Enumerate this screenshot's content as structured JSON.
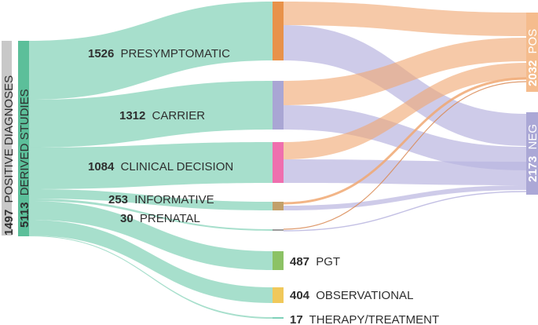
{
  "diagram": {
    "type": "sankey",
    "left_labels": {
      "positive_diagnoses": {
        "count": "1497",
        "label": "POSITIVE DIAGNOSES"
      },
      "derived_studies": {
        "count": "5113",
        "label": "DERIVED STUDIES"
      }
    },
    "categories": [
      {
        "id": "presymptomatic",
        "count": "1526",
        "label": "PRESYMPTOMATIC",
        "color": "#e8924a"
      },
      {
        "id": "carrier",
        "count": "1312",
        "label": "CARRIER",
        "color": "#a9a6d4"
      },
      {
        "id": "clinical-decision",
        "count": "1084",
        "label": "CLINICAL  DECISION",
        "color": "#ef6fae"
      },
      {
        "id": "informative",
        "count": "253",
        "label": "INFORMATIVE",
        "color": "#c2a06a"
      },
      {
        "id": "prenatal",
        "count": "30",
        "label": "PRENATAL",
        "color": "#9a9a9a"
      },
      {
        "id": "pgt",
        "count": "487",
        "label": "PGT",
        "color": "#8cc265"
      },
      {
        "id": "observational",
        "count": "404",
        "label": "OBSERVATIONAL",
        "color": "#f0c85a"
      },
      {
        "id": "therapy-treatment",
        "count": "17",
        "label": "THERAPY/TREATMENT",
        "color": "#7fd1b9"
      }
    ],
    "outcomes": [
      {
        "id": "pos",
        "count": "2032",
        "label": "POS",
        "color": "#f5bc8d"
      },
      {
        "id": "neg",
        "count": "2173",
        "label": "NEG",
        "color": "#aba8d6"
      }
    ],
    "colors": {
      "source_flow": "#9fdcc8",
      "source_bar": "#5cbf9a",
      "gray_bar": "#c8c8c8",
      "pos_flow": "#f0a872",
      "neg_flow": "#b9b5df"
    }
  }
}
